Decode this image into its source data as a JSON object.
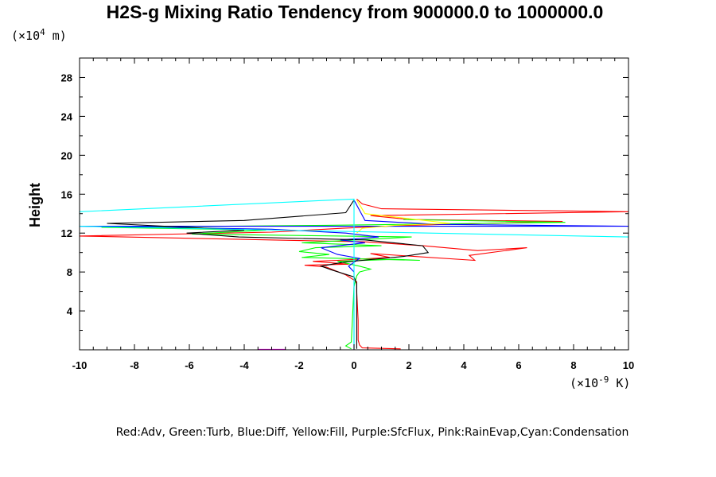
{
  "chart_data": {
    "type": "line",
    "title": "H2S-g Mixing Ratio Tendency from 900000.0 to 1000000.0",
    "ylabel": "Height",
    "x_unit": "(×10",
    "x_unit_exp": "-9",
    "x_unit_tail": " K)",
    "y_unit": "(×10",
    "y_unit_exp": "4",
    "y_unit_tail": " m)",
    "legend_text": "Red:Adv, Green:Turb, Blue:Diff, Yellow:Fill, Purple:SfcFlux, Pink:RainEvap,Cyan:Condensation",
    "xlim": [
      -10,
      10
    ],
    "ylim": [
      0,
      30
    ],
    "x_ticks": [
      -10,
      -8,
      -6,
      -4,
      -2,
      0,
      2,
      4,
      6,
      8,
      10
    ],
    "y_ticks": [
      4,
      8,
      12,
      16,
      20,
      24,
      28
    ],
    "series": [
      {
        "color": "#ff0000",
        "points": [
          [
            1.7,
            0.1
          ],
          [
            0.3,
            0.2
          ],
          [
            0.2,
            0.5
          ],
          [
            0.15,
            1
          ],
          [
            0.15,
            3
          ],
          [
            0.1,
            6
          ],
          [
            0.1,
            7
          ],
          [
            -0.3,
            7.7
          ],
          [
            -1,
            8.5
          ],
          [
            -1.8,
            8.7
          ],
          [
            -0.2,
            8.8
          ],
          [
            -1.5,
            9.1
          ],
          [
            -0.6,
            9.2
          ],
          [
            1.3,
            9.5
          ],
          [
            0.6,
            9.9
          ],
          [
            4.4,
            9.2
          ],
          [
            4.2,
            9.7
          ],
          [
            6.3,
            10.5
          ],
          [
            4.5,
            10.2
          ],
          [
            2.5,
            10.7
          ],
          [
            0.4,
            11.1
          ],
          [
            -10,
            11.7
          ],
          [
            -3,
            12.1
          ],
          [
            -0.4,
            12.5
          ],
          [
            2,
            12.8
          ],
          [
            7.6,
            13.2
          ],
          [
            2,
            13.4
          ],
          [
            0.6,
            13.8
          ],
          [
            10,
            14.2
          ],
          [
            1,
            14.5
          ],
          [
            0.3,
            15
          ],
          [
            0.1,
            15.5
          ]
        ]
      },
      {
        "color": "#00ff00",
        "points": [
          [
            -0.1,
            0.1
          ],
          [
            -0.3,
            0.4
          ],
          [
            -0.1,
            0.8
          ],
          [
            0,
            6.5
          ],
          [
            0.1,
            7.6
          ],
          [
            0.2,
            8
          ],
          [
            0.6,
            8.3
          ],
          [
            0.2,
            8.6
          ],
          [
            -0.6,
            9.1
          ],
          [
            1.5,
            9.3
          ],
          [
            2.4,
            9.2
          ],
          [
            -1.9,
            9.5
          ],
          [
            -0.9,
            9.8
          ],
          [
            -2,
            10.1
          ],
          [
            -1.4,
            10.5
          ],
          [
            1,
            10.7
          ],
          [
            -1.9,
            11
          ],
          [
            2.1,
            11.6
          ],
          [
            -5.9,
            11.9
          ],
          [
            -3.2,
            12.3
          ],
          [
            -9.2,
            12.6
          ],
          [
            -1,
            12.8
          ],
          [
            7.7,
            13.1
          ],
          [
            1.8,
            13.4
          ]
        ]
      },
      {
        "color": "#0000ff",
        "points": [
          [
            0,
            0.1
          ],
          [
            0,
            8
          ],
          [
            -0.2,
            8.6
          ],
          [
            0.2,
            9.4
          ],
          [
            -0.6,
            9.8
          ],
          [
            -1.2,
            10.5
          ],
          [
            0.4,
            11
          ],
          [
            -0.5,
            11.3
          ],
          [
            0.9,
            11.6
          ],
          [
            -0.3,
            12
          ],
          [
            -3,
            12.4
          ],
          [
            -10,
            12.7
          ],
          [
            10,
            12.7
          ],
          [
            3,
            12.9
          ],
          [
            0.4,
            13.3
          ],
          [
            0,
            15.4
          ]
        ]
      },
      {
        "color": "#000000",
        "points": [
          [
            0.1,
            0.1
          ],
          [
            0.1,
            6.8
          ],
          [
            0,
            7.5
          ],
          [
            -0.8,
            8.2
          ],
          [
            -1.2,
            8.6
          ],
          [
            -0.4,
            9
          ],
          [
            0.3,
            9.2
          ],
          [
            1.8,
            9.6
          ],
          [
            2.7,
            10
          ],
          [
            2.5,
            10.7
          ],
          [
            0.4,
            11.3
          ],
          [
            -4.2,
            11.6
          ],
          [
            -6.1,
            12
          ],
          [
            -4,
            12.3
          ],
          [
            -9,
            13
          ],
          [
            -4,
            13.3
          ],
          [
            -0.3,
            14.1
          ],
          [
            0,
            15.4
          ]
        ]
      },
      {
        "color": "#ffff00",
        "points": [
          [
            0.1,
            12
          ],
          [
            0.3,
            12.5
          ],
          [
            1.5,
            12.8
          ],
          [
            3.5,
            13
          ],
          [
            0.4,
            14
          ],
          [
            0.1,
            15.4
          ]
        ]
      },
      {
        "color": "#00ffff",
        "points": [
          [
            0,
            0.1
          ],
          [
            0,
            15.5
          ],
          [
            -10,
            14.2
          ],
          [
            -10,
            12.7
          ],
          [
            10,
            11.6
          ]
        ]
      },
      {
        "color": "#ff00ff",
        "points": [
          [
            -3.5,
            0.05
          ],
          [
            -2.5,
            0.05
          ]
        ]
      }
    ]
  }
}
